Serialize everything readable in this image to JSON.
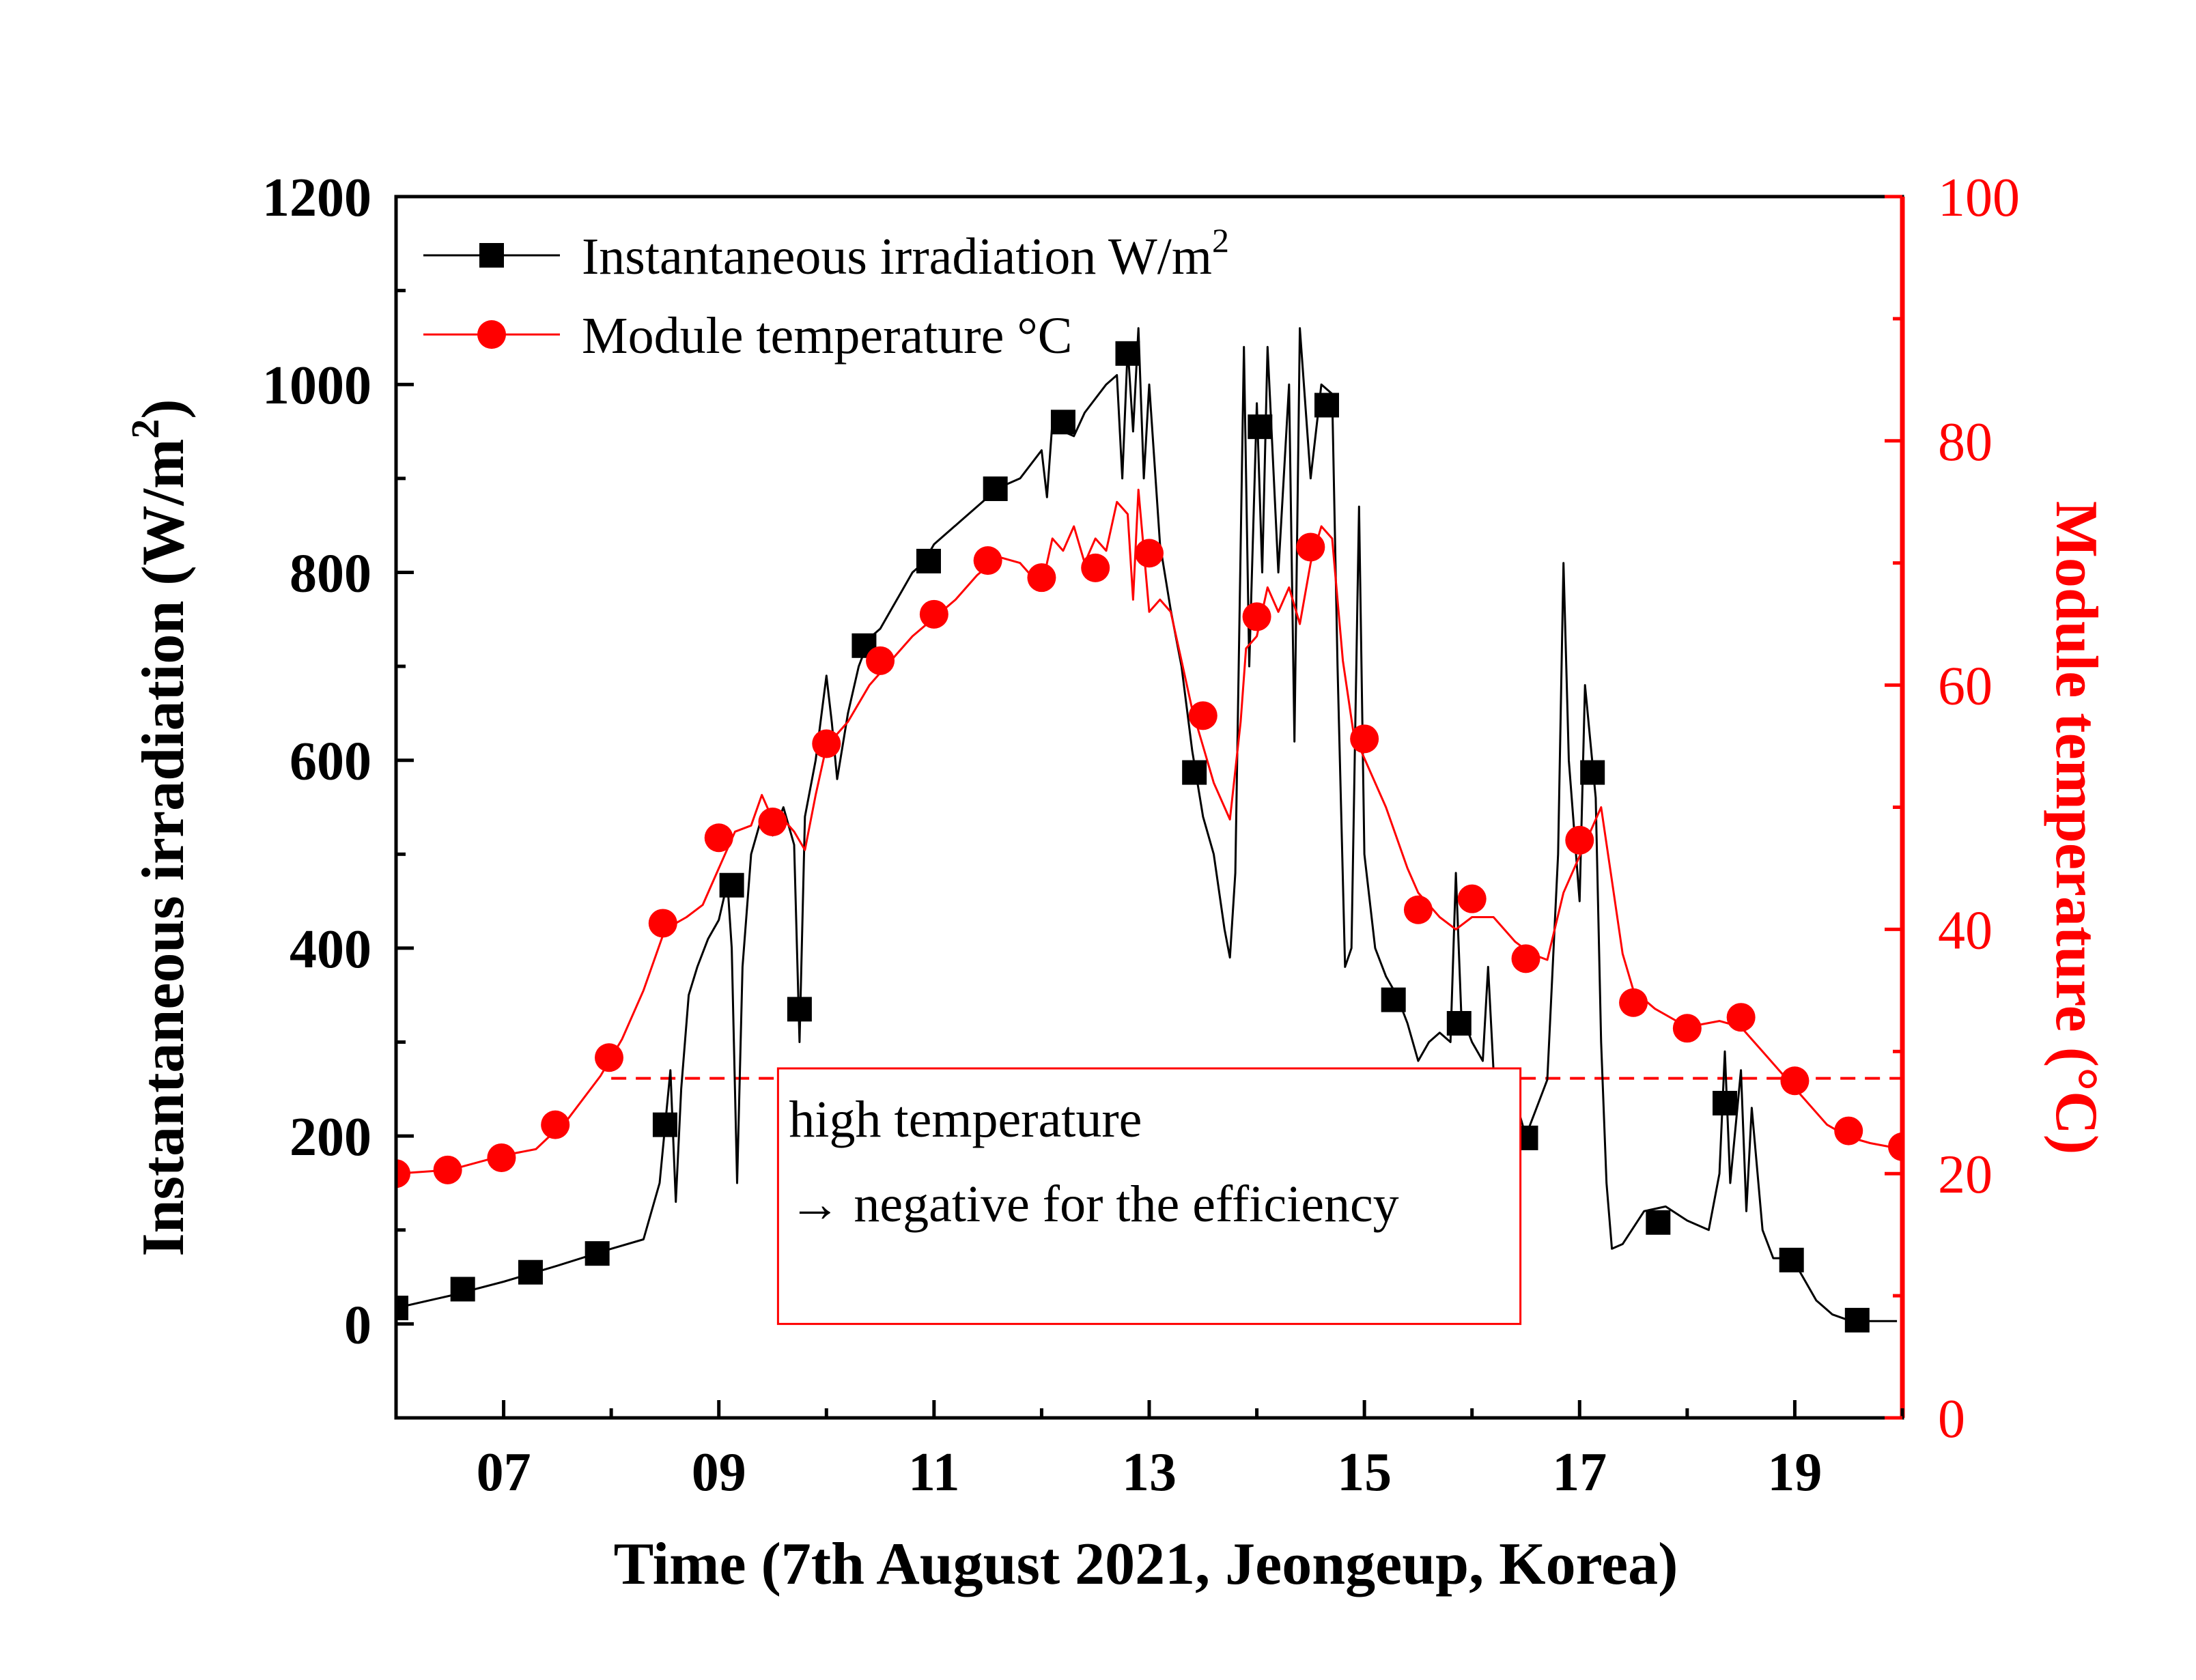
{
  "chart_data": {
    "type": "line",
    "title": "",
    "xlabel": "Time (7th August 2021, Jeongeup, Korea)",
    "ylabel_left": "Instantaneous irradiation (W/m2)",
    "ylabel_left_main": "Instantaneous irradiation (W/m",
    "ylabel_left_sup": "2",
    "ylabel_left_close": ")",
    "ylabel_right": "Module temperature (°C)",
    "xlim": [
      6.0,
      20.0
    ],
    "ylim_left": [
      -100,
      1200
    ],
    "ylim_right": [
      0,
      100
    ],
    "x_ticks": [
      7,
      9,
      11,
      13,
      15,
      17,
      19
    ],
    "x_tick_labels": [
      "07",
      "09",
      "11",
      "13",
      "15",
      "17",
      "19"
    ],
    "y_left_ticks": [
      0,
      200,
      400,
      600,
      800,
      1000,
      1200
    ],
    "y_left_tick_labels": [
      "0",
      "200",
      "400",
      "600",
      "800",
      "1000",
      "1200"
    ],
    "y_right_ticks": [
      0,
      20,
      40,
      60,
      80,
      100
    ],
    "y_right_tick_labels": [
      "0",
      "20",
      "40",
      "60",
      "80",
      "100"
    ],
    "grid": false,
    "legend_position": "top-left",
    "colors": {
      "irradiation": "#000000",
      "temperature": "#ff0000",
      "threshold": "#ff0000"
    },
    "series": [
      {
        "name": "Instantaneous irradiation W/m2",
        "legend_main": "Instantaneous irradiation W/m",
        "legend_sup": "2",
        "axis": "left",
        "marker": "square",
        "color": "#000000",
        "line": [
          [
            6.0,
            17
          ],
          [
            6.5,
            30
          ],
          [
            7.0,
            45
          ],
          [
            7.5,
            62
          ],
          [
            8.0,
            80
          ],
          [
            8.3,
            90
          ],
          [
            8.45,
            150
          ],
          [
            8.55,
            270
          ],
          [
            8.6,
            130
          ],
          [
            8.65,
            250
          ],
          [
            8.72,
            350
          ],
          [
            8.8,
            380
          ],
          [
            8.9,
            410
          ],
          [
            9.0,
            430
          ],
          [
            9.08,
            470
          ],
          [
            9.12,
            400
          ],
          [
            9.17,
            150
          ],
          [
            9.22,
            380
          ],
          [
            9.3,
            500
          ],
          [
            9.4,
            540
          ],
          [
            9.5,
            520
          ],
          [
            9.6,
            550
          ],
          [
            9.7,
            510
          ],
          [
            9.75,
            300
          ],
          [
            9.8,
            540
          ],
          [
            9.9,
            600
          ],
          [
            10.0,
            690
          ],
          [
            10.05,
            640
          ],
          [
            10.1,
            580
          ],
          [
            10.2,
            650
          ],
          [
            10.3,
            700
          ],
          [
            10.4,
            730
          ],
          [
            10.5,
            740
          ],
          [
            10.6,
            760
          ],
          [
            10.7,
            780
          ],
          [
            10.8,
            800
          ],
          [
            10.9,
            810
          ],
          [
            11.0,
            830
          ],
          [
            11.2,
            850
          ],
          [
            11.4,
            870
          ],
          [
            11.6,
            890
          ],
          [
            11.8,
            900
          ],
          [
            12.0,
            930
          ],
          [
            12.05,
            880
          ],
          [
            12.1,
            960
          ],
          [
            12.2,
            950
          ],
          [
            12.3,
            945
          ],
          [
            12.4,
            970
          ],
          [
            12.5,
            985
          ],
          [
            12.6,
            1000
          ],
          [
            12.7,
            1010
          ],
          [
            12.75,
            900
          ],
          [
            12.8,
            1040
          ],
          [
            12.85,
            950
          ],
          [
            12.9,
            1060
          ],
          [
            12.95,
            900
          ],
          [
            13.0,
            1000
          ],
          [
            13.1,
            830
          ],
          [
            13.2,
            760
          ],
          [
            13.3,
            700
          ],
          [
            13.4,
            610
          ],
          [
            13.5,
            540
          ],
          [
            13.6,
            500
          ],
          [
            13.7,
            420
          ],
          [
            13.75,
            390
          ],
          [
            13.8,
            480
          ],
          [
            13.88,
            1040
          ],
          [
            13.93,
            700
          ],
          [
            14.0,
            980
          ],
          [
            14.05,
            800
          ],
          [
            14.1,
            1040
          ],
          [
            14.2,
            800
          ],
          [
            14.3,
            1000
          ],
          [
            14.35,
            620
          ],
          [
            14.4,
            1060
          ],
          [
            14.5,
            900
          ],
          [
            14.6,
            1000
          ],
          [
            14.7,
            990
          ],
          [
            14.75,
            700
          ],
          [
            14.82,
            380
          ],
          [
            14.88,
            400
          ],
          [
            14.95,
            870
          ],
          [
            15.0,
            500
          ],
          [
            15.1,
            400
          ],
          [
            15.2,
            370
          ],
          [
            15.3,
            350
          ],
          [
            15.4,
            320
          ],
          [
            15.5,
            280
          ],
          [
            15.6,
            300
          ],
          [
            15.7,
            310
          ],
          [
            15.8,
            300
          ],
          [
            15.85,
            480
          ],
          [
            15.9,
            330
          ],
          [
            16.0,
            300
          ],
          [
            16.1,
            280
          ],
          [
            16.15,
            380
          ],
          [
            16.2,
            270
          ],
          [
            16.3,
            260
          ],
          [
            16.4,
            240
          ],
          [
            16.5,
            200
          ],
          [
            16.6,
            230
          ],
          [
            16.7,
            260
          ],
          [
            16.8,
            500
          ],
          [
            16.85,
            810
          ],
          [
            16.9,
            600
          ],
          [
            17.0,
            450
          ],
          [
            17.05,
            680
          ],
          [
            17.15,
            560
          ],
          [
            17.2,
            300
          ],
          [
            17.25,
            150
          ],
          [
            17.3,
            80
          ],
          [
            17.4,
            85
          ],
          [
            17.6,
            120
          ],
          [
            17.8,
            125
          ],
          [
            18.0,
            110
          ],
          [
            18.2,
            100
          ],
          [
            18.3,
            160
          ],
          [
            18.35,
            290
          ],
          [
            18.4,
            150
          ],
          [
            18.5,
            270
          ],
          [
            18.55,
            120
          ],
          [
            18.6,
            230
          ],
          [
            18.7,
            100
          ],
          [
            18.8,
            70
          ],
          [
            18.9,
            70
          ],
          [
            19.0,
            65
          ],
          [
            19.1,
            45
          ],
          [
            19.2,
            25
          ],
          [
            19.35,
            10
          ],
          [
            19.5,
            4
          ],
          [
            19.7,
            3
          ],
          [
            19.95,
            3
          ]
        ],
        "markers": [
          [
            6.0,
            17
          ],
          [
            6.62,
            37
          ],
          [
            7.25,
            55
          ],
          [
            7.87,
            75
          ],
          [
            8.5,
            212
          ],
          [
            9.12,
            467
          ],
          [
            9.75,
            335
          ],
          [
            10.35,
            722
          ],
          [
            10.95,
            812
          ],
          [
            11.57,
            889
          ],
          [
            12.2,
            960
          ],
          [
            12.8,
            1033
          ],
          [
            13.42,
            587
          ],
          [
            14.03,
            955
          ],
          [
            14.65,
            978
          ],
          [
            15.27,
            345
          ],
          [
            15.88,
            320
          ],
          [
            16.5,
            198
          ],
          [
            17.12,
            587
          ],
          [
            17.73,
            108
          ],
          [
            18.35,
            235
          ],
          [
            18.97,
            68
          ],
          [
            19.58,
            4
          ]
        ]
      },
      {
        "name": "Module temperature °C",
        "legend_main": "Module temperature °C",
        "axis": "right",
        "marker": "circle",
        "color": "#ff0000",
        "line": [
          [
            6.0,
            20
          ],
          [
            6.5,
            20.3
          ],
          [
            7.0,
            21.5
          ],
          [
            7.3,
            22
          ],
          [
            7.6,
            24.5
          ],
          [
            7.9,
            28
          ],
          [
            8.1,
            31
          ],
          [
            8.3,
            35
          ],
          [
            8.5,
            40
          ],
          [
            8.7,
            41
          ],
          [
            8.85,
            42
          ],
          [
            9.0,
            45
          ],
          [
            9.15,
            48
          ],
          [
            9.3,
            48.5
          ],
          [
            9.4,
            51
          ],
          [
            9.5,
            49
          ],
          [
            9.6,
            49
          ],
          [
            9.7,
            48
          ],
          [
            9.8,
            46.5
          ],
          [
            9.9,
            51
          ],
          [
            10.0,
            55
          ],
          [
            10.2,
            57
          ],
          [
            10.4,
            60
          ],
          [
            10.6,
            62
          ],
          [
            10.8,
            64
          ],
          [
            11.0,
            65.5
          ],
          [
            11.2,
            67
          ],
          [
            11.4,
            69
          ],
          [
            11.6,
            70.5
          ],
          [
            11.8,
            70
          ],
          [
            12.0,
            68
          ],
          [
            12.1,
            72
          ],
          [
            12.2,
            71
          ],
          [
            12.3,
            73
          ],
          [
            12.4,
            70
          ],
          [
            12.5,
            72
          ],
          [
            12.6,
            71
          ],
          [
            12.7,
            75
          ],
          [
            12.8,
            74
          ],
          [
            12.85,
            67
          ],
          [
            12.9,
            76
          ],
          [
            13.0,
            66
          ],
          [
            13.1,
            67
          ],
          [
            13.2,
            66
          ],
          [
            13.3,
            62
          ],
          [
            13.4,
            58
          ],
          [
            13.5,
            55
          ],
          [
            13.6,
            52
          ],
          [
            13.7,
            50
          ],
          [
            13.75,
            49
          ],
          [
            13.85,
            57
          ],
          [
            13.9,
            63
          ],
          [
            14.0,
            64
          ],
          [
            14.1,
            68
          ],
          [
            14.2,
            66
          ],
          [
            14.3,
            68
          ],
          [
            14.4,
            65
          ],
          [
            14.5,
            70
          ],
          [
            14.6,
            73
          ],
          [
            14.7,
            72
          ],
          [
            14.8,
            62
          ],
          [
            14.9,
            56
          ],
          [
            15.0,
            54
          ],
          [
            15.2,
            50
          ],
          [
            15.4,
            45
          ],
          [
            15.5,
            43
          ],
          [
            15.7,
            41
          ],
          [
            15.85,
            40
          ],
          [
            16.0,
            41
          ],
          [
            16.2,
            41
          ],
          [
            16.4,
            39
          ],
          [
            16.55,
            38
          ],
          [
            16.7,
            37.5
          ],
          [
            16.85,
            43
          ],
          [
            17.0,
            46
          ],
          [
            17.1,
            48
          ],
          [
            17.2,
            50
          ],
          [
            17.3,
            44
          ],
          [
            17.4,
            38
          ],
          [
            17.5,
            35
          ],
          [
            17.7,
            33.5
          ],
          [
            18.0,
            32
          ],
          [
            18.3,
            32.5
          ],
          [
            18.5,
            32
          ],
          [
            18.7,
            30
          ],
          [
            18.9,
            28
          ],
          [
            19.1,
            26
          ],
          [
            19.3,
            24
          ],
          [
            19.5,
            23
          ],
          [
            19.7,
            22.5
          ],
          [
            20.0,
            22
          ]
        ],
        "markers": [
          [
            6.0,
            20
          ],
          [
            6.48,
            20.3
          ],
          [
            6.98,
            21.3
          ],
          [
            7.48,
            24
          ],
          [
            7.98,
            29.5
          ],
          [
            8.48,
            40.5
          ],
          [
            9.0,
            47.5
          ],
          [
            9.5,
            48.8
          ],
          [
            10.0,
            55.2
          ],
          [
            10.5,
            62
          ],
          [
            11.0,
            65.8
          ],
          [
            11.5,
            70.2
          ],
          [
            12.0,
            68.8
          ],
          [
            12.5,
            69.6
          ],
          [
            13.0,
            70.8
          ],
          [
            13.5,
            57.5
          ],
          [
            14.0,
            65.6
          ],
          [
            14.5,
            71.3
          ],
          [
            15.0,
            55.6
          ],
          [
            15.5,
            41.6
          ],
          [
            16.0,
            42.5
          ],
          [
            16.5,
            37.6
          ],
          [
            17.0,
            47.3
          ],
          [
            17.5,
            34
          ],
          [
            18.0,
            31.9
          ],
          [
            18.5,
            32.8
          ],
          [
            19.0,
            27.6
          ],
          [
            19.5,
            23.5
          ],
          [
            20.0,
            22.2
          ]
        ]
      }
    ],
    "threshold": {
      "axis": "right",
      "value": 27.8,
      "x_range": [
        8.0,
        20.0
      ],
      "style": "dashed"
    },
    "annotation": {
      "lines": [
        "high temperature",
        "→ negative for the efficiency"
      ],
      "x_range": [
        9.55,
        16.45
      ],
      "y_range_left": [
        0,
        272
      ]
    }
  }
}
